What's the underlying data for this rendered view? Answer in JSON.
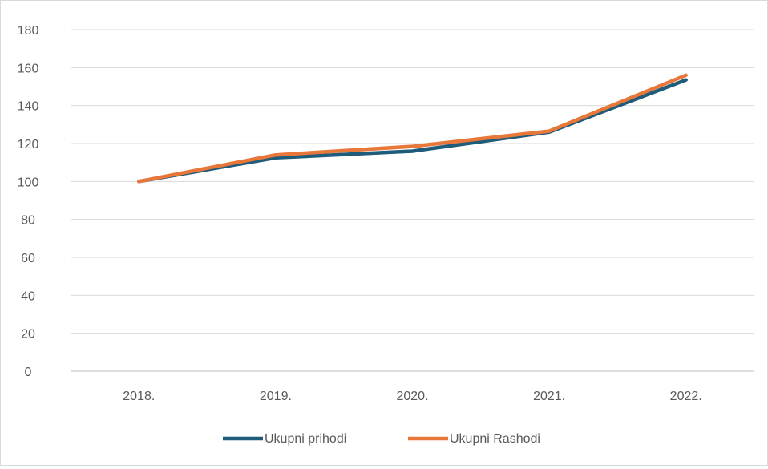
{
  "chart_data": {
    "type": "line",
    "title": "",
    "xlabel": "",
    "ylabel": "",
    "categories": [
      "2018.",
      "2019.",
      "2020.",
      "2021.",
      "2022."
    ],
    "ylim": [
      0,
      180
    ],
    "yticks": [
      0,
      20,
      40,
      60,
      80,
      100,
      120,
      140,
      160,
      180
    ],
    "grid": true,
    "legend_position": "bottom",
    "series": [
      {
        "name": "Ukupni prihodi",
        "color": "#1f5b7a",
        "values": [
          100,
          112.5,
          116,
          126,
          153.5
        ]
      },
      {
        "name": "Ukupni Rashodi",
        "color": "#e8773a",
        "values": [
          100,
          114,
          118.5,
          126.5,
          156
        ]
      }
    ]
  }
}
